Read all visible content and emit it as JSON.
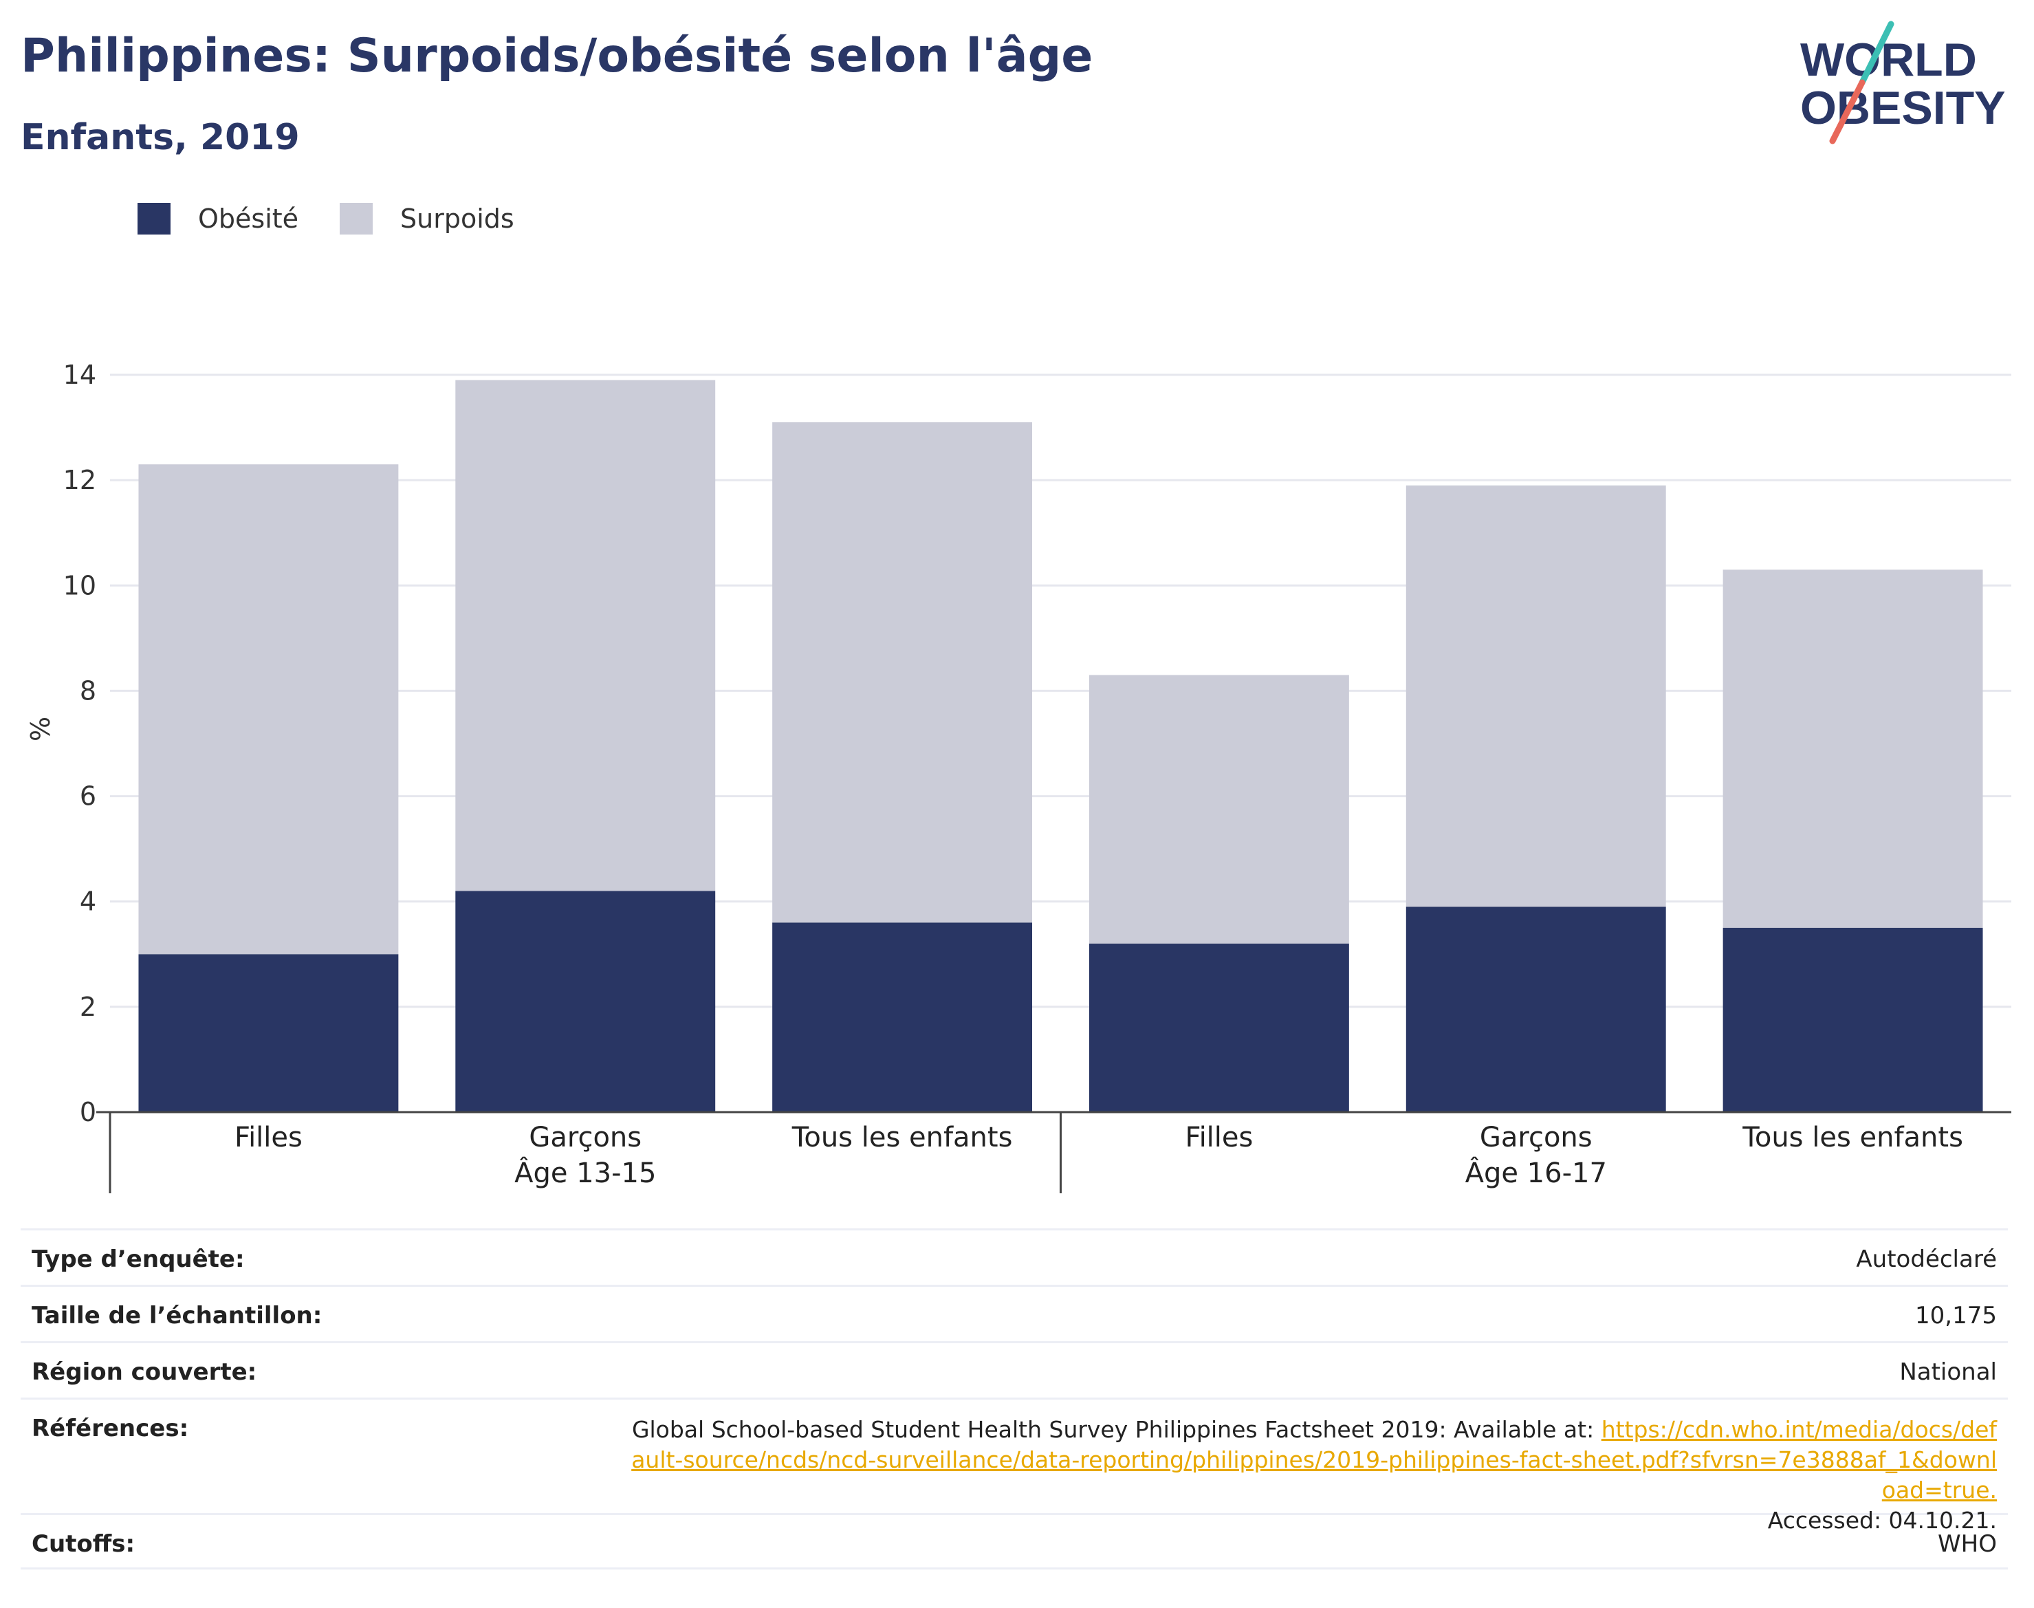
{
  "header": {
    "title": "Philippines: Surpoids/obésité selon l'âge",
    "subtitle": "Enfants, 2019"
  },
  "logo": {
    "line1": "WORLD",
    "line2": "OBESITY"
  },
  "colors": {
    "obesity": "#293664",
    "overweight": "#cbccd8",
    "title": "#2a3766",
    "link": "#e8a800"
  },
  "chart_data": {
    "type": "bar",
    "stacked": true,
    "ylabel": "%",
    "ylim": [
      0,
      14
    ],
    "yticks": [
      0,
      2,
      4,
      6,
      8,
      10,
      12,
      14
    ],
    "grid": true,
    "legend_position": "top-left",
    "groups": [
      {
        "label": "Âge 13-15",
        "categories": [
          "Filles",
          "Garçons",
          "Tous les enfants"
        ]
      },
      {
        "label": "Âge 16-17",
        "categories": [
          "Filles",
          "Garçons",
          "Tous les enfants"
        ]
      }
    ],
    "series": [
      {
        "name": "Obésité",
        "values": [
          3.0,
          4.2,
          3.6,
          3.2,
          3.9,
          3.5
        ]
      },
      {
        "name": "Surpoids",
        "values": [
          9.3,
          9.7,
          9.5,
          5.1,
          8.0,
          6.8
        ]
      }
    ]
  },
  "info_table": [
    {
      "label": "Type d’enquête:",
      "value": "Autodéclaré"
    },
    {
      "label": "Taille de l’échantillon:",
      "value": "10,175"
    },
    {
      "label": "Région couverte:",
      "value": "National"
    },
    {
      "label": "Références:",
      "value": "Global School-based Student Health Survey Philippines Factsheet 2019: Available at:",
      "link": "https://cdn.who.int/media/docs/default-source/ncds/ncd-surveillance/data-reporting/philippines/2019-philippines-fact-sheet.pdf?sfvrsn=7e3888af_1&download=true.",
      "accessed": "Accessed: 04.10.21."
    },
    {
      "label": "Cutoffs:",
      "value": "WHO"
    }
  ]
}
